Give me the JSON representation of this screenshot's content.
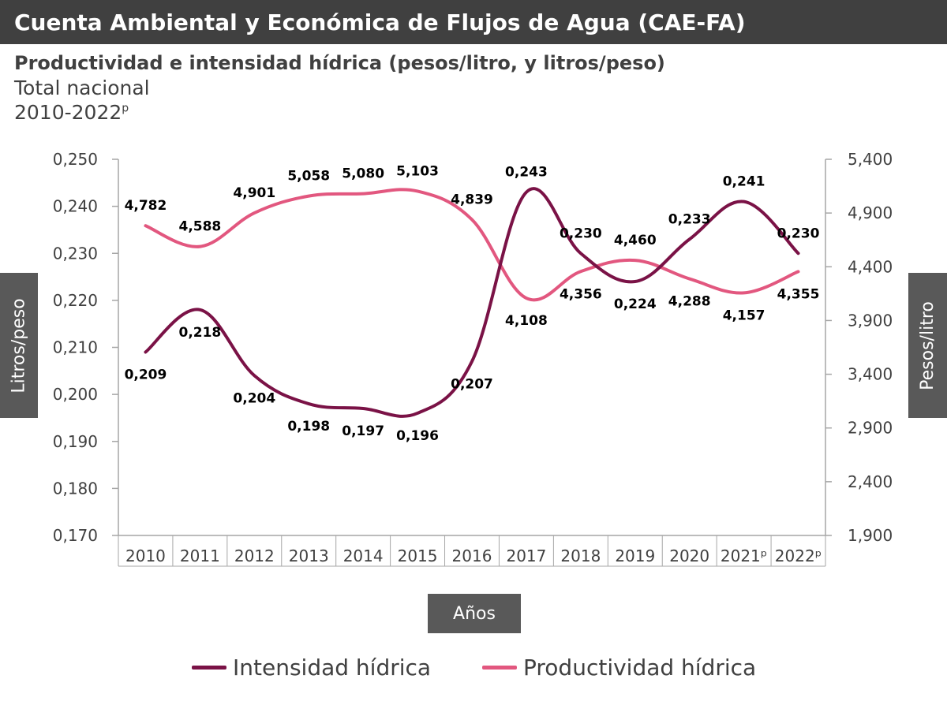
{
  "header": {
    "title": "Cuenta Ambiental y Económica de Flujos de Agua (CAE-FA)"
  },
  "subtitle": {
    "line1": "Productividad e intensidad hídrica (pesos/litro, y litros/peso)",
    "line2": "Total nacional",
    "line3_main": "2010-2022",
    "line3_sup": "p"
  },
  "axes": {
    "left_title": "Litros/peso",
    "right_title": "Pesos/litro",
    "bottom_title": "Años"
  },
  "colors": {
    "intensidad": "#7a1246",
    "productividad": "#e2577f",
    "header": "#404040",
    "axis_box": "#595959"
  },
  "chart_data": {
    "type": "line",
    "title": "Productividad e intensidad hídrica (pesos/litro, y litros/peso)",
    "xlabel": "Años",
    "categories": [
      "2010",
      "2011",
      "2012",
      "2013",
      "2014",
      "2015",
      "2016",
      "2017",
      "2018",
      "2019",
      "2020",
      "2021ᵖ",
      "2022ᵖ"
    ],
    "y_left": {
      "label": "Litros/peso",
      "ylim": [
        0.17,
        0.25
      ],
      "ticks": [
        "0,170",
        "0,180",
        "0,190",
        "0,200",
        "0,210",
        "0,220",
        "0,230",
        "0,240",
        "0,250"
      ]
    },
    "y_right": {
      "label": "Pesos/litro",
      "ylim": [
        1900,
        5400
      ],
      "ticks": [
        "1,900",
        "2,400",
        "2,900",
        "3,400",
        "3,900",
        "4,400",
        "4,900",
        "5,400"
      ]
    },
    "series": [
      {
        "name": "Intensidad hídrica",
        "axis": "left",
        "values": [
          0.209,
          0.218,
          0.204,
          0.198,
          0.197,
          0.196,
          0.207,
          0.243,
          0.23,
          0.224,
          0.233,
          0.241,
          0.23
        ],
        "labels": [
          "0,209",
          "0,218",
          "0,204",
          "0,198",
          "0,197",
          "0,196",
          "0,207",
          "0,243",
          "0,230",
          "0,224",
          "0,233",
          "0,241",
          "0,230"
        ]
      },
      {
        "name": "Productividad hídrica",
        "axis": "right",
        "values": [
          4782,
          4588,
          4901,
          5058,
          5080,
          5103,
          4839,
          4108,
          4356,
          4460,
          4288,
          4157,
          4355
        ],
        "labels": [
          "4,782",
          "4,588",
          "4,901",
          "5,058",
          "5,080",
          "5,103",
          "4,839",
          "4,108",
          "4,356",
          "4,460",
          "4,288",
          "4,157",
          "4,355"
        ]
      }
    ],
    "legend": [
      "Intensidad hídrica",
      "Productividad hídrica"
    ],
    "legend_position": "bottom"
  }
}
